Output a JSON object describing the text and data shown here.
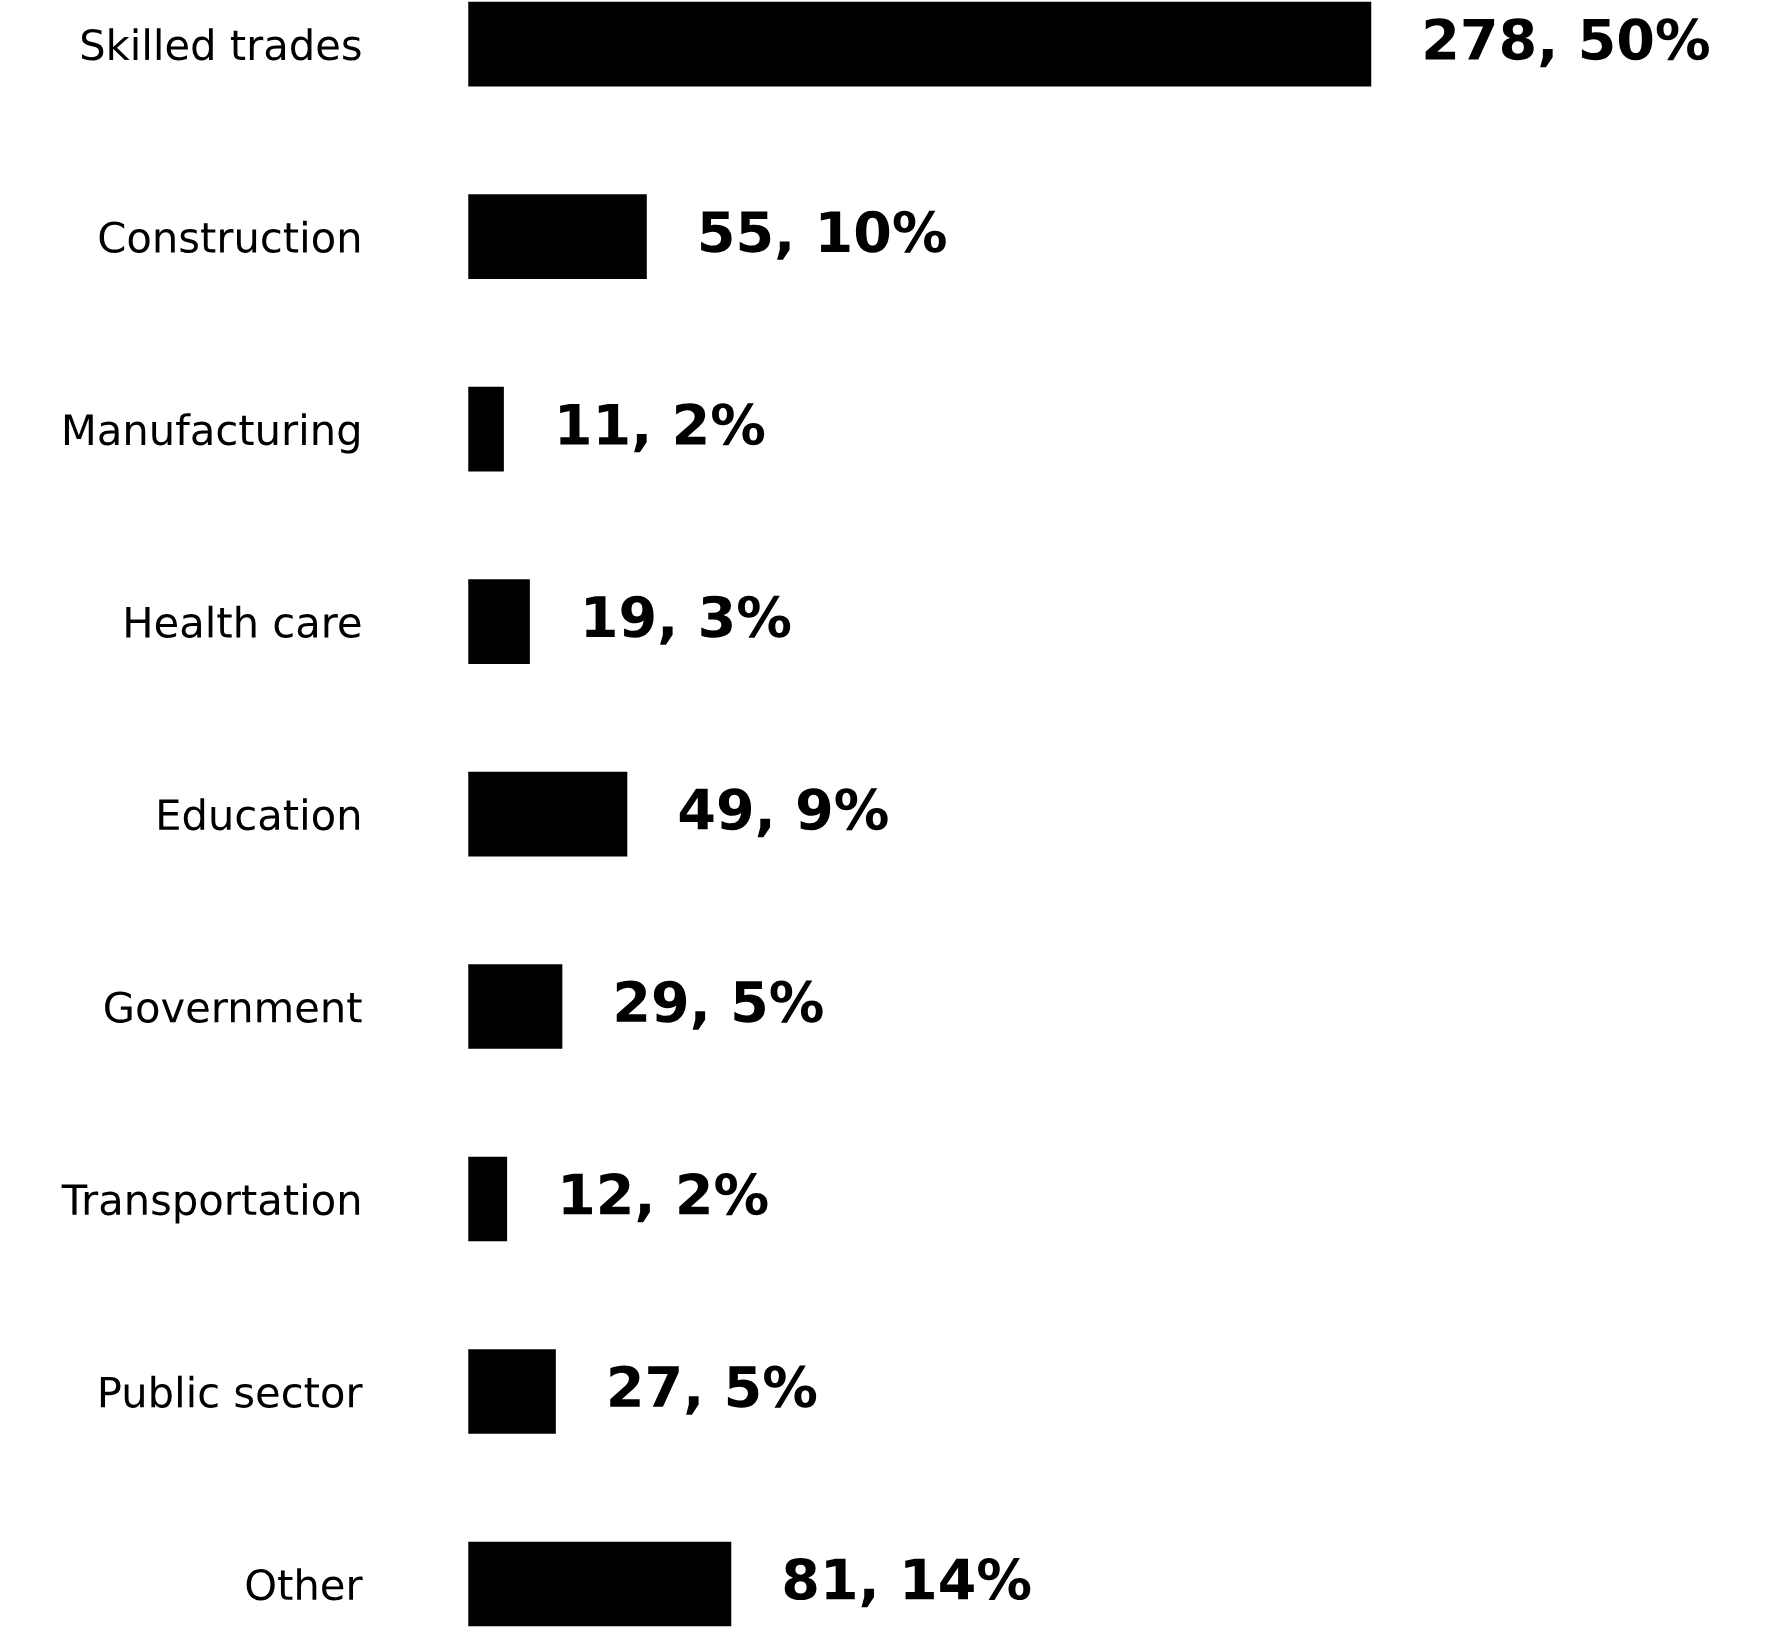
{
  "chart_data": {
    "type": "bar",
    "orientation": "horizontal",
    "categories": [
      "Skilled trades",
      "Construction",
      "Manufacturing",
      "Health care",
      "Education",
      "Government",
      "Transportation",
      "Public sector",
      "Other"
    ],
    "values": [
      278,
      55,
      11,
      19,
      49,
      29,
      12,
      27,
      81
    ],
    "color": "#000000",
    "value_labels": [
      "278, 50%",
      "55, 10%",
      "11, 2%",
      "19, 3%",
      "49, 9%",
      "29, 5%",
      "12, 2%",
      "27, 5%",
      "81, 14%"
    ],
    "grid": false,
    "legend": false
  }
}
